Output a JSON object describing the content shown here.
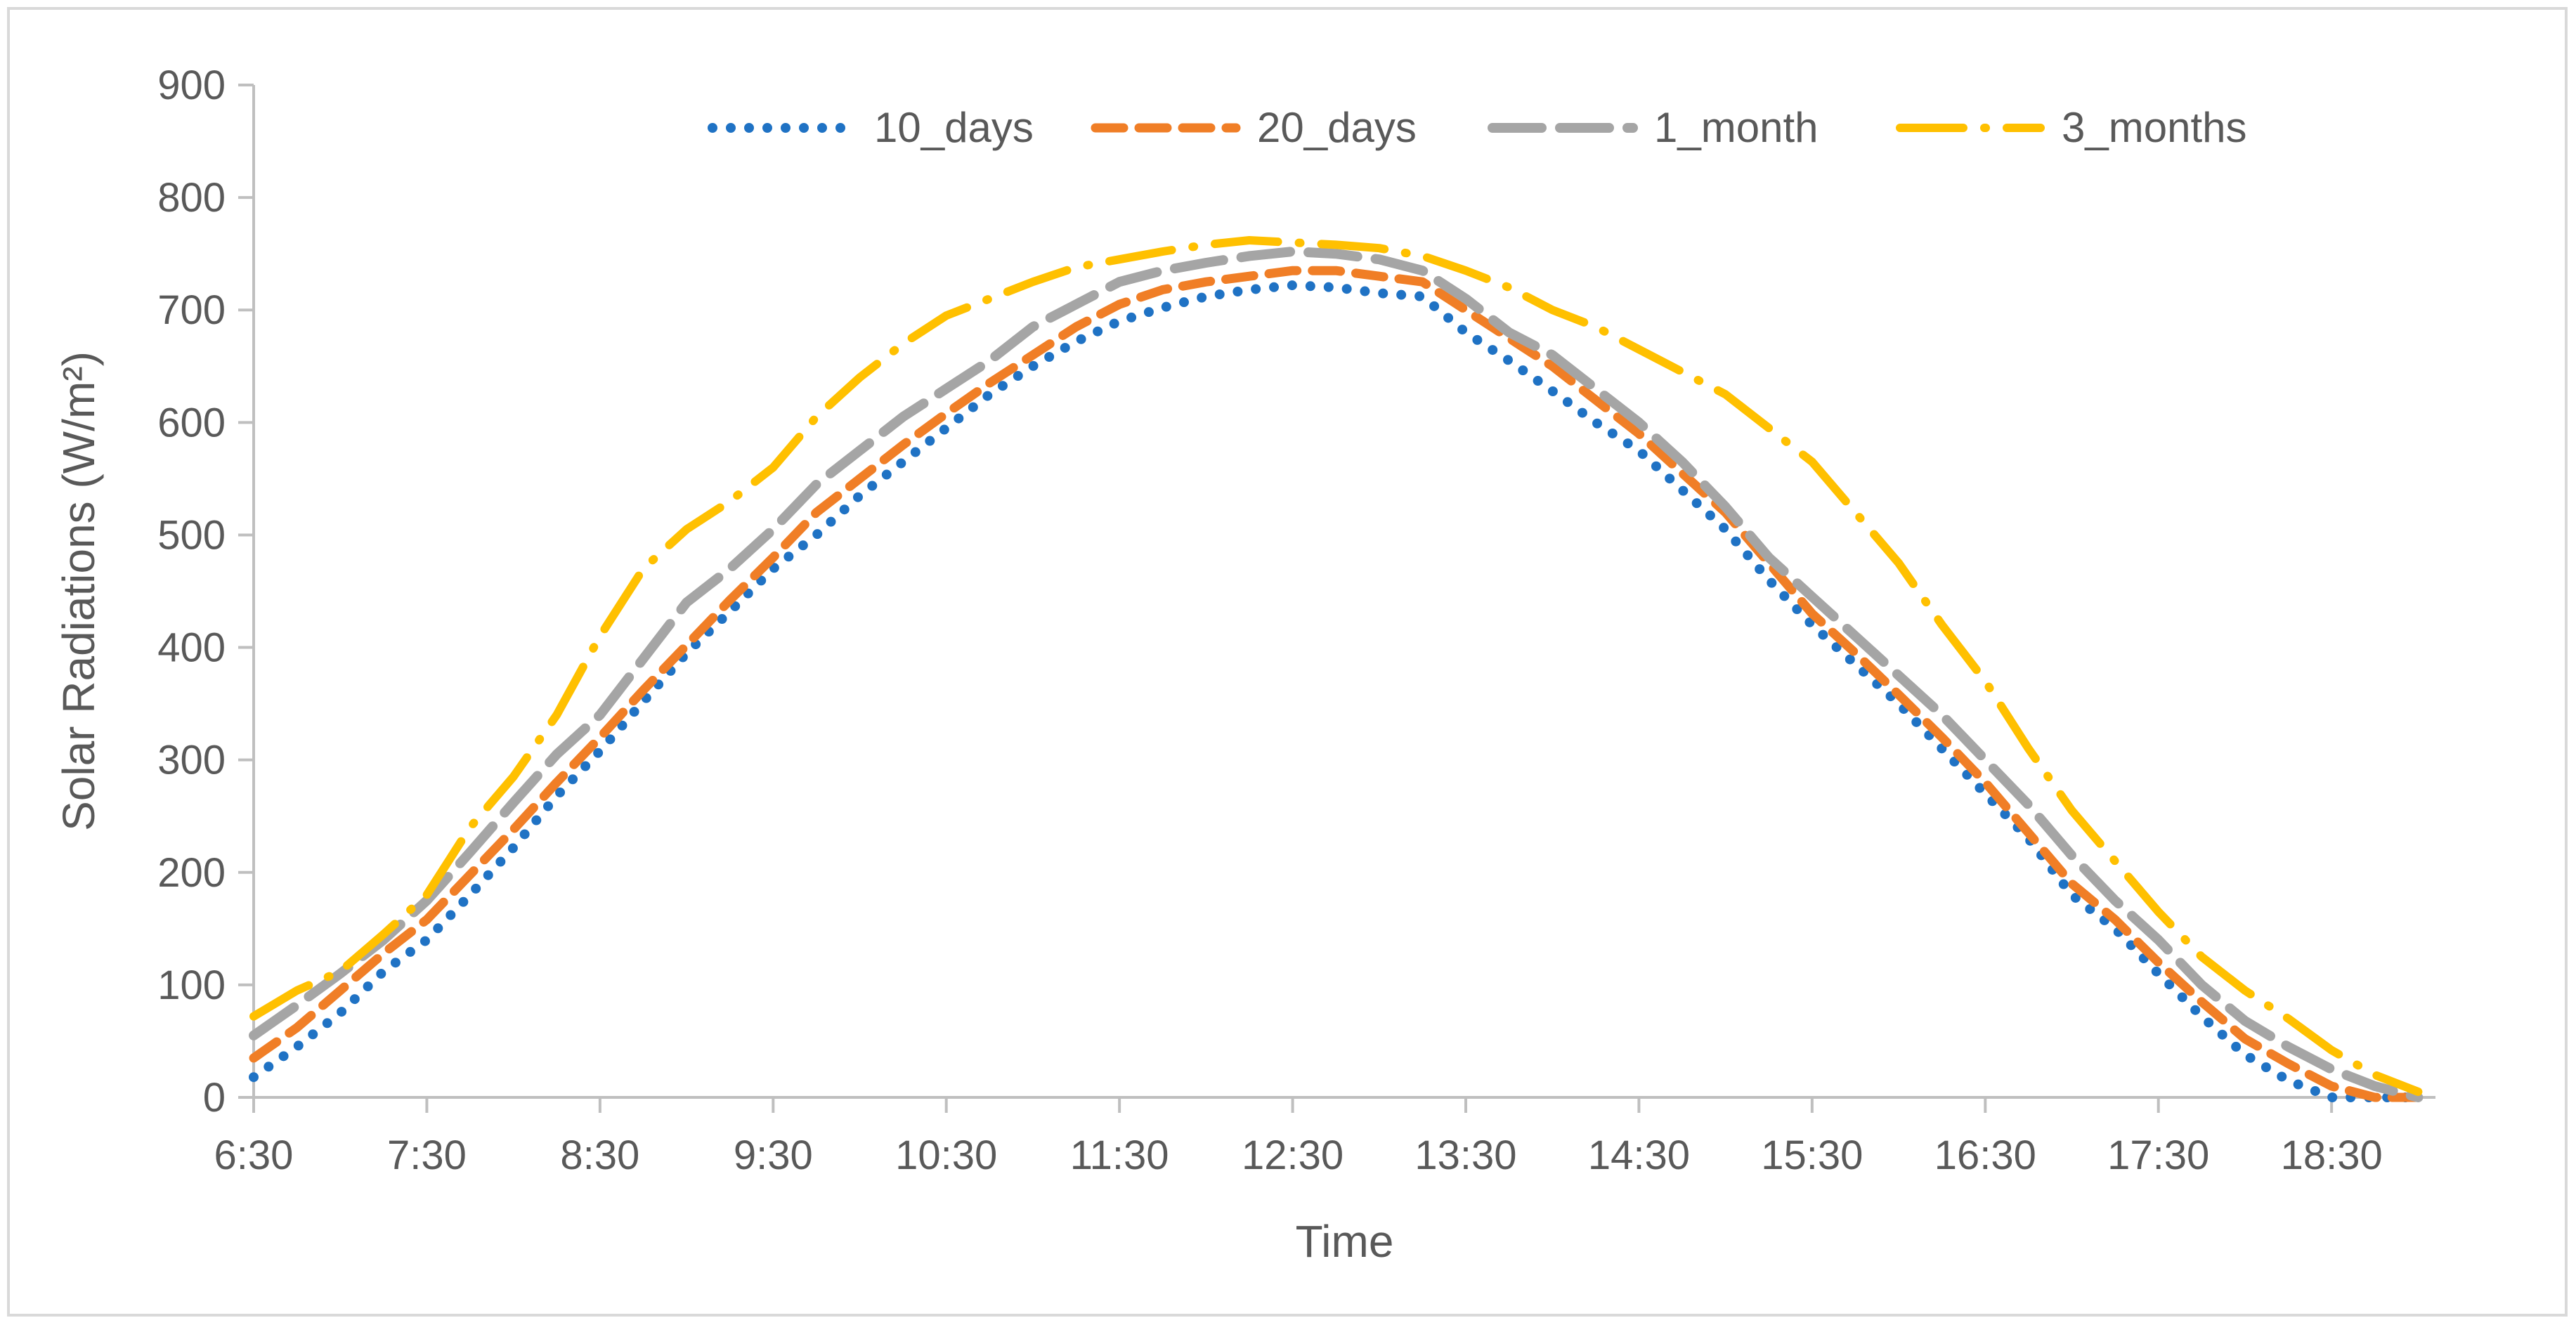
{
  "chart_data": {
    "type": "line",
    "title": "",
    "xlabel": "Time",
    "ylabel": "Solar Radiations (W/m²)",
    "ylim": [
      0,
      900
    ],
    "yticks": [
      0,
      100,
      200,
      300,
      400,
      500,
      600,
      700,
      800,
      900
    ],
    "xlim": [
      6.5,
      19.1
    ],
    "xtick_values": [
      6.5,
      7.5,
      8.5,
      9.5,
      10.5,
      11.5,
      12.5,
      13.5,
      14.5,
      15.5,
      16.5,
      17.5,
      18.5
    ],
    "xtick_labels": [
      "6:30",
      "7:30",
      "8:30",
      "9:30",
      "10:30",
      "11:30",
      "12:30",
      "13:30",
      "14:30",
      "15:30",
      "16:30",
      "17:30",
      "18:30"
    ],
    "legend_position": "top",
    "series": [
      {
        "name": "10_days",
        "color": "#1f72c4",
        "style": "dotted",
        "x": [
          6.5,
          6.75,
          7.0,
          7.25,
          7.5,
          7.75,
          8.0,
          8.25,
          8.5,
          8.75,
          9.0,
          9.25,
          9.5,
          9.75,
          10.0,
          10.25,
          10.5,
          10.75,
          11.0,
          11.25,
          11.5,
          11.75,
          12.0,
          12.25,
          12.5,
          12.75,
          13.0,
          13.25,
          13.5,
          13.75,
          14.0,
          14.25,
          14.5,
          14.75,
          15.0,
          15.25,
          15.5,
          15.75,
          16.0,
          16.25,
          16.5,
          16.75,
          17.0,
          17.25,
          17.5,
          17.75,
          18.0,
          18.25,
          18.5,
          18.75,
          19.0
        ],
        "y": [
          18,
          45,
          75,
          112,
          140,
          180,
          222,
          268,
          308,
          352,
          395,
          432,
          470,
          500,
          535,
          565,
          595,
          625,
          650,
          672,
          690,
          702,
          712,
          718,
          722,
          720,
          715,
          712,
          680,
          655,
          628,
          600,
          575,
          540,
          505,
          460,
          420,
          385,
          350,
          310,
          270,
          230,
          180,
          150,
          110,
          72,
          38,
          15,
          0,
          0,
          0
        ]
      },
      {
        "name": "20_days",
        "color": "#f07e26",
        "style": "dashed",
        "x": [
          6.5,
          6.75,
          7.0,
          7.25,
          7.5,
          7.75,
          8.0,
          8.25,
          8.5,
          8.75,
          9.0,
          9.25,
          9.5,
          9.75,
          10.0,
          10.25,
          10.5,
          10.75,
          11.0,
          11.25,
          11.5,
          11.75,
          12.0,
          12.25,
          12.5,
          12.75,
          13.0,
          13.25,
          13.5,
          13.75,
          14.0,
          14.25,
          14.5,
          14.75,
          15.0,
          15.25,
          15.5,
          15.75,
          16.0,
          16.25,
          16.5,
          16.75,
          17.0,
          17.25,
          17.5,
          17.75,
          18.0,
          18.25,
          18.5,
          18.75,
          19.0
        ],
        "y": [
          35,
          62,
          95,
          128,
          158,
          198,
          238,
          280,
          320,
          362,
          402,
          442,
          480,
          520,
          550,
          580,
          608,
          635,
          660,
          685,
          705,
          718,
          725,
          730,
          735,
          735,
          730,
          725,
          700,
          675,
          650,
          620,
          590,
          555,
          520,
          475,
          430,
          395,
          358,
          320,
          280,
          235,
          190,
          158,
          120,
          85,
          52,
          30,
          10,
          0,
          0
        ]
      },
      {
        "name": "1_month",
        "color": "#a5a5a5",
        "style": "long-dash",
        "x": [
          6.5,
          6.75,
          7.0,
          7.25,
          7.5,
          7.75,
          8.0,
          8.25,
          8.5,
          8.75,
          9.0,
          9.25,
          9.5,
          9.75,
          10.0,
          10.25,
          10.5,
          10.75,
          11.0,
          11.25,
          11.5,
          11.75,
          12.0,
          12.25,
          12.5,
          12.75,
          13.0,
          13.25,
          13.5,
          13.75,
          14.0,
          14.25,
          14.5,
          14.75,
          15.0,
          15.25,
          15.5,
          15.75,
          16.0,
          16.25,
          16.5,
          16.75,
          17.0,
          17.25,
          17.5,
          17.75,
          18.0,
          18.25,
          18.5,
          18.75,
          19.0
        ],
        "y": [
          55,
          82,
          110,
          140,
          175,
          218,
          262,
          305,
          340,
          390,
          440,
          470,
          505,
          545,
          575,
          605,
          630,
          655,
          685,
          705,
          725,
          735,
          742,
          748,
          752,
          750,
          745,
          735,
          710,
          680,
          660,
          630,
          600,
          565,
          525,
          480,
          445,
          410,
          375,
          340,
          300,
          260,
          215,
          175,
          140,
          100,
          68,
          45,
          25,
          10,
          0
        ]
      },
      {
        "name": "3_months",
        "color": "#ffc000",
        "style": "long-dash-dot",
        "x": [
          6.5,
          6.75,
          7.0,
          7.25,
          7.5,
          7.75,
          8.0,
          8.25,
          8.5,
          8.75,
          9.0,
          9.25,
          9.5,
          9.75,
          10.0,
          10.25,
          10.5,
          10.75,
          11.0,
          11.25,
          11.5,
          11.75,
          12.0,
          12.25,
          12.5,
          12.75,
          13.0,
          13.25,
          13.5,
          13.75,
          14.0,
          14.25,
          14.5,
          14.75,
          15.0,
          15.25,
          15.5,
          15.75,
          16.0,
          16.25,
          16.5,
          16.75,
          17.0,
          17.25,
          17.5,
          17.75,
          18.0,
          18.25,
          18.5,
          18.75,
          19.0
        ],
        "y": [
          72,
          95,
          112,
          145,
          180,
          240,
          285,
          340,
          410,
          470,
          505,
          530,
          560,
          605,
          640,
          670,
          695,
          710,
          725,
          738,
          745,
          752,
          758,
          762,
          760,
          758,
          755,
          748,
          735,
          720,
          700,
          685,
          665,
          645,
          625,
          595,
          565,
          520,
          475,
          420,
          370,
          310,
          255,
          210,
          165,
          125,
          95,
          70,
          42,
          20,
          5
        ]
      }
    ]
  }
}
